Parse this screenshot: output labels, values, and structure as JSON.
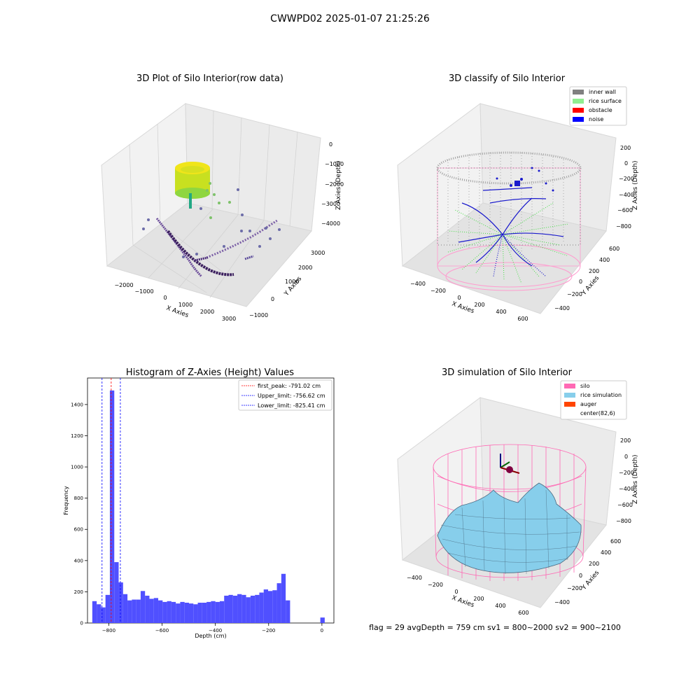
{
  "suptitle": "CWWPD02 2025-01-07 21:25:26",
  "panels": {
    "raw": {
      "title": "3D Plot of Silo Interior(row data)",
      "xlabel": "X Axies",
      "ylabel": "Y Axies",
      "zlabel": "Z Axies (Depth)",
      "xticks": [
        "−2000",
        "−1000",
        "0",
        "1000",
        "2000",
        "3000"
      ],
      "yticks": [
        "−1000",
        "0",
        "1000",
        "2000",
        "3000"
      ],
      "zticks": [
        "0",
        "−1000",
        "−2000",
        "−3000",
        "−4000"
      ]
    },
    "classify": {
      "title": "3D classify of Silo Interior",
      "xlabel": "X Axies",
      "ylabel": "Y Axies",
      "zlabel": "Z Axies (Depth)",
      "xticks": [
        "−400",
        "−200",
        "0",
        "200",
        "400",
        "600"
      ],
      "yticks": [
        "−400",
        "−200",
        "0",
        "200",
        "400",
        "600"
      ],
      "zticks": [
        "200",
        "0",
        "−200",
        "−400",
        "−600",
        "−800"
      ],
      "legend": [
        {
          "label": "inner wall",
          "color": "#808080"
        },
        {
          "label": "rice surface",
          "color": "#90ee90"
        },
        {
          "label": "obstacle",
          "color": "#ff0000"
        },
        {
          "label": "noise",
          "color": "#0000ff"
        }
      ]
    },
    "simulation": {
      "title": "3D simulation of Silo Interior",
      "xlabel": "X Axies",
      "ylabel": "Y Axies",
      "zlabel": "Z Axies (Depth)",
      "xticks": [
        "−400",
        "−200",
        "0",
        "200",
        "400",
        "600"
      ],
      "yticks": [
        "−400",
        "−200",
        "0",
        "200",
        "400",
        "600"
      ],
      "zticks": [
        "200",
        "0",
        "−200",
        "−400",
        "−600",
        "−800"
      ],
      "legend": [
        {
          "label": "silo",
          "color": "#ff69b4"
        },
        {
          "label": "rice simulation",
          "color": "#87ceeb"
        },
        {
          "label": "auger",
          "color": "#ff4500"
        },
        {
          "label": "center(82,6)",
          "color": ""
        }
      ],
      "footer": "flag = 29   avgDepth = 759 cm   sv1 = 800~2000   sv2 = 900~2100"
    }
  },
  "chart_data": [
    {
      "type": "bar",
      "title": "Histogram of Z-Axies (Height) Values",
      "xlabel": "Depth (cm)",
      "ylabel": "Frequency",
      "xlim": [
        -880,
        45
      ],
      "ylim": [
        0,
        1570
      ],
      "bar_color": "#5050ff",
      "xticks": [
        -800,
        -600,
        -400,
        -200,
        0
      ],
      "xtick_labels": [
        "−800",
        "−600",
        "−400",
        "−200",
        "0"
      ],
      "yticks": [
        0,
        200,
        400,
        600,
        800,
        1000,
        1200,
        1400
      ],
      "bin_width": 16.5,
      "bins": [
        {
          "x": -862,
          "value": 140
        },
        {
          "x": -845.5,
          "value": 120
        },
        {
          "x": -829,
          "value": 100
        },
        {
          "x": -812.5,
          "value": 180
        },
        {
          "x": -796,
          "value": 1490
        },
        {
          "x": -779.5,
          "value": 390
        },
        {
          "x": -763,
          "value": 260
        },
        {
          "x": -746.5,
          "value": 185
        },
        {
          "x": -730,
          "value": 145
        },
        {
          "x": -713.5,
          "value": 150
        },
        {
          "x": -697,
          "value": 150
        },
        {
          "x": -680.5,
          "value": 205
        },
        {
          "x": -664,
          "value": 175
        },
        {
          "x": -647.5,
          "value": 155
        },
        {
          "x": -631,
          "value": 160
        },
        {
          "x": -614.5,
          "value": 145
        },
        {
          "x": -598,
          "value": 135
        },
        {
          "x": -581.5,
          "value": 140
        },
        {
          "x": -565,
          "value": 135
        },
        {
          "x": -548.5,
          "value": 125
        },
        {
          "x": -532,
          "value": 135
        },
        {
          "x": -515.5,
          "value": 130
        },
        {
          "x": -499,
          "value": 125
        },
        {
          "x": -482.5,
          "value": 120
        },
        {
          "x": -466,
          "value": 130
        },
        {
          "x": -449.5,
          "value": 130
        },
        {
          "x": -433,
          "value": 135
        },
        {
          "x": -416.5,
          "value": 140
        },
        {
          "x": -400,
          "value": 135
        },
        {
          "x": -383.5,
          "value": 140
        },
        {
          "x": -367,
          "value": 175
        },
        {
          "x": -350.5,
          "value": 180
        },
        {
          "x": -334,
          "value": 175
        },
        {
          "x": -317.5,
          "value": 185
        },
        {
          "x": -301,
          "value": 180
        },
        {
          "x": -284.5,
          "value": 165
        },
        {
          "x": -268,
          "value": 175
        },
        {
          "x": -251.5,
          "value": 180
        },
        {
          "x": -235,
          "value": 195
        },
        {
          "x": -218.5,
          "value": 215
        },
        {
          "x": -202,
          "value": 205
        },
        {
          "x": -185.5,
          "value": 210
        },
        {
          "x": -169,
          "value": 255
        },
        {
          "x": -152.5,
          "value": 315
        },
        {
          "x": -136,
          "value": 145
        },
        {
          "x": -6,
          "value": 35
        }
      ],
      "vlines": [
        {
          "x": -791.02,
          "color": "#ff0000",
          "label": "first_peak: -791.02 cm"
        },
        {
          "x": -756.62,
          "color": "#0000ff",
          "label": "Upper_limit: -756.62 cm"
        },
        {
          "x": -825.41,
          "color": "#0000ff",
          "label": "Lower_limit: -825.41 cm"
        }
      ]
    }
  ]
}
